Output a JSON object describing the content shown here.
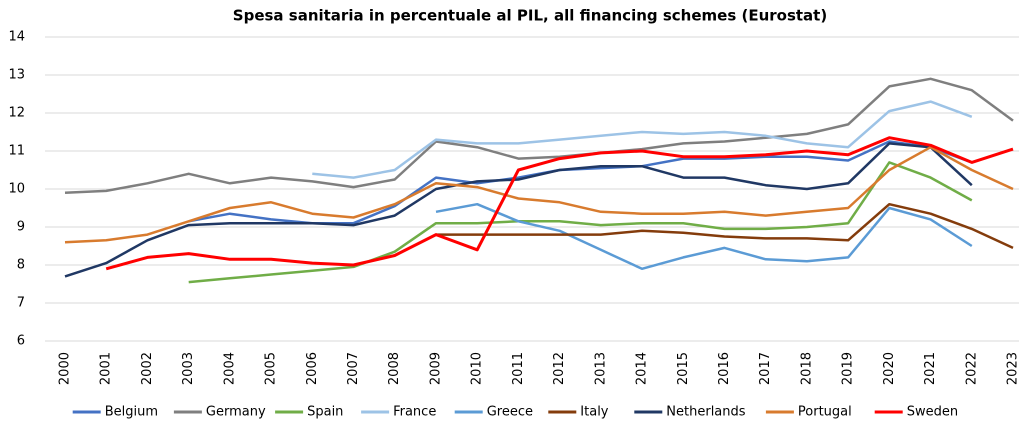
{
  "chart_data": {
    "type": "line",
    "title": "Spesa sanitaria in percentuale al PIL, all financing schemes (Eurostat)",
    "categories": [
      "2000",
      "2001",
      "2002",
      "2003",
      "2004",
      "2005",
      "2006",
      "2007",
      "2008",
      "2009",
      "2010",
      "2011",
      "2012",
      "2013",
      "2014",
      "2015",
      "2016",
      "2017",
      "2018",
      "2019",
      "2020",
      "2021",
      "2022",
      "2023"
    ],
    "ylim": [
      6,
      14
    ],
    "yticks": [
      6,
      7,
      8,
      9,
      10,
      11,
      12,
      13,
      14
    ],
    "grid": true,
    "legend": "bottom",
    "series": [
      {
        "name": "Belgium",
        "color": "#4472c4",
        "values": [
          null,
          null,
          null,
          9.15,
          9.35,
          9.2,
          9.1,
          9.1,
          9.55,
          10.3,
          10.15,
          10.3,
          10.5,
          10.55,
          10.6,
          10.8,
          10.8,
          10.85,
          10.85,
          10.75,
          11.25,
          11.1,
          10.7,
          null
        ]
      },
      {
        "name": "Germany",
        "color": "#7f7f7f",
        "values": [
          9.9,
          9.95,
          10.15,
          10.4,
          10.15,
          10.3,
          10.2,
          10.05,
          10.25,
          11.25,
          11.1,
          10.8,
          10.85,
          10.95,
          11.05,
          11.2,
          11.25,
          11.35,
          11.45,
          11.7,
          12.7,
          12.9,
          12.6,
          11.8
        ]
      },
      {
        "name": "Spain",
        "color": "#70ad47",
        "values": [
          null,
          null,
          null,
          7.55,
          7.65,
          7.75,
          7.85,
          7.95,
          8.35,
          9.1,
          9.1,
          9.15,
          9.15,
          9.05,
          9.1,
          9.1,
          8.95,
          8.95,
          9.0,
          9.1,
          10.7,
          10.3,
          9.7,
          null
        ]
      },
      {
        "name": "France",
        "color": "#9dc3e6",
        "values": [
          null,
          null,
          null,
          null,
          null,
          null,
          10.4,
          10.3,
          10.5,
          11.3,
          11.2,
          11.2,
          11.3,
          11.4,
          11.5,
          11.45,
          11.5,
          11.4,
          11.2,
          11.1,
          12.05,
          12.3,
          11.9,
          null
        ]
      },
      {
        "name": "Greece",
        "color": "#5b9bd5",
        "values": [
          null,
          null,
          null,
          null,
          null,
          null,
          null,
          null,
          null,
          9.4,
          9.6,
          9.15,
          8.9,
          8.4,
          7.9,
          8.2,
          8.45,
          8.15,
          8.1,
          8.2,
          9.5,
          9.2,
          8.5,
          null
        ]
      },
      {
        "name": "Italy",
        "color": "#843c0c",
        "values": [
          null,
          null,
          null,
          null,
          null,
          null,
          null,
          null,
          null,
          8.8,
          8.8,
          8.8,
          8.8,
          8.8,
          8.9,
          8.85,
          8.75,
          8.7,
          8.7,
          8.65,
          9.6,
          9.35,
          8.95,
          8.45
        ]
      },
      {
        "name": "Netherlands",
        "color": "#203864",
        "values": [
          7.7,
          8.05,
          8.65,
          9.05,
          9.1,
          9.1,
          9.1,
          9.05,
          9.3,
          10.0,
          10.2,
          10.25,
          10.5,
          10.6,
          10.6,
          10.3,
          10.3,
          10.1,
          10.0,
          10.15,
          11.2,
          11.1,
          10.1,
          null
        ]
      },
      {
        "name": "Portugal",
        "color": "#d87b2e",
        "values": [
          8.6,
          8.65,
          8.8,
          9.15,
          9.5,
          9.65,
          9.35,
          9.25,
          9.6,
          10.15,
          10.05,
          9.75,
          9.65,
          9.4,
          9.35,
          9.35,
          9.4,
          9.3,
          9.4,
          9.5,
          10.5,
          11.1,
          10.5,
          10.0
        ]
      },
      {
        "name": "Sweden",
        "color": "#ff0000",
        "values": [
          null,
          7.9,
          8.2,
          8.3,
          8.15,
          8.15,
          8.05,
          8.0,
          8.25,
          8.8,
          8.4,
          10.5,
          10.8,
          10.95,
          11.0,
          10.85,
          10.85,
          10.9,
          11.0,
          10.9,
          11.35,
          11.15,
          10.7,
          11.05
        ]
      }
    ]
  }
}
